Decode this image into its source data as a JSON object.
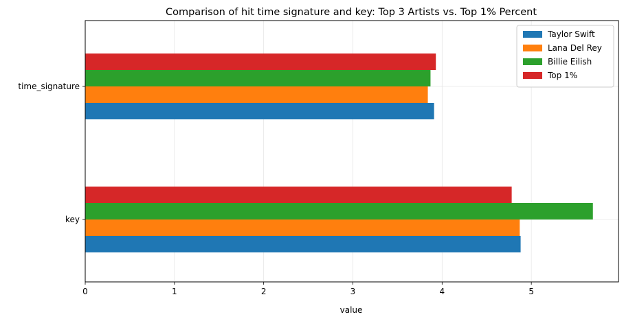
{
  "chart_data": {
    "type": "bar",
    "orientation": "horizontal",
    "title": "Comparison of hit time signature and key: Top 3 Artists vs. Top 1% Percent",
    "xlabel": "value",
    "ylabel": "",
    "categories": [
      "key",
      "time_signature"
    ],
    "xlim": [
      0,
      6
    ],
    "xticks": [
      0,
      1,
      2,
      3,
      4,
      5
    ],
    "grid": true,
    "legend_position": "top-right",
    "series": [
      {
        "name": "Taylor Swift",
        "color": "#1f77b4",
        "values": [
          4.88,
          3.91
        ]
      },
      {
        "name": "Lana Del Rey",
        "color": "#ff7f0e",
        "values": [
          4.87,
          3.84
        ]
      },
      {
        "name": "Billie Eilish",
        "color": "#2ca02c",
        "values": [
          5.69,
          3.87
        ]
      },
      {
        "name": "Top 1%",
        "color": "#d62728",
        "values": [
          4.78,
          3.93
        ]
      }
    ]
  }
}
